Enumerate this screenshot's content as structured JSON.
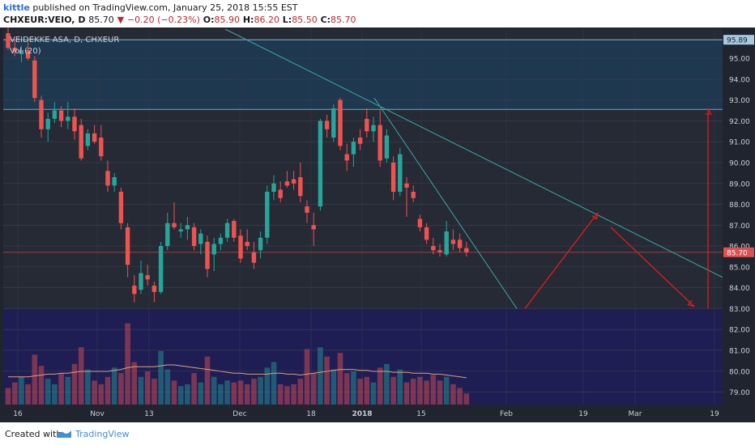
{
  "header": {
    "user": "kittle",
    "published": "published on TradingView.com, January 25, 2018 15:55 EST",
    "symbol": "CHXEUR:VEIO, D",
    "last": "85.70",
    "arrow": "▼",
    "change": "−0.20 (−0.23%)",
    "o_label": "O:",
    "o": "85.90",
    "h_label": "H:",
    "h": "86.20",
    "l_label": "L:",
    "l": "85.50",
    "c_label": "C:",
    "c": "85.70"
  },
  "footer": {
    "created_with": "Created with",
    "brand": "TradingView"
  },
  "colors": {
    "up": "#26a69a",
    "down": "#ef5350",
    "panel_bg": "#252a35",
    "blue_zone": "#1d3a52",
    "volume_bg": "#1e1e55",
    "trend_line": "#3aa9a3",
    "drawing": "#e01b1b",
    "ma": "#e0a070"
  },
  "chart_data": {
    "type": "candlestick",
    "symbol_label": "VEIDEKKE ASA, D, CHXEUR",
    "volume_label": "Vol (20)",
    "y_axis": {
      "ylim": [
        78.4,
        96.4
      ],
      "ticks": [
        "79.00",
        "80.00",
        "81.00",
        "82.00",
        "83.00",
        "84.00",
        "85.00",
        "86.00",
        "87.00",
        "88.00",
        "89.00",
        "90.00",
        "91.00",
        "92.00",
        "93.00",
        "94.00",
        "95.00"
      ],
      "top_label": "95.89",
      "last_label": "85.70"
    },
    "x_axis": {
      "ticks": [
        "16",
        "Nov",
        "13",
        "Dec",
        "18",
        "2018",
        "15",
        "Feb",
        "19",
        "Mar",
        "19"
      ]
    },
    "candles": [
      {
        "o": 96.2,
        "h": 96.6,
        "l": 95.4,
        "c": 95.5
      },
      {
        "o": 95.5,
        "h": 95.9,
        "l": 95.1,
        "c": 95.3
      },
      {
        "o": 95.2,
        "h": 95.6,
        "l": 94.8,
        "c": 95.4
      },
      {
        "o": 95.4,
        "h": 95.8,
        "l": 94.9,
        "c": 95.0
      },
      {
        "o": 94.9,
        "h": 95.1,
        "l": 92.9,
        "c": 93.1
      },
      {
        "o": 93.0,
        "h": 93.2,
        "l": 91.2,
        "c": 91.6
      },
      {
        "o": 91.6,
        "h": 92.4,
        "l": 91.0,
        "c": 92.1
      },
      {
        "o": 92.1,
        "h": 92.9,
        "l": 91.9,
        "c": 92.5
      },
      {
        "o": 92.5,
        "h": 92.7,
        "l": 91.7,
        "c": 92.0
      },
      {
        "o": 92.0,
        "h": 92.9,
        "l": 91.6,
        "c": 92.2
      },
      {
        "o": 92.2,
        "h": 92.6,
        "l": 91.1,
        "c": 91.5
      },
      {
        "o": 91.8,
        "h": 92.1,
        "l": 90.1,
        "c": 90.2
      },
      {
        "o": 90.8,
        "h": 91.6,
        "l": 90.6,
        "c": 91.4
      },
      {
        "o": 91.4,
        "h": 91.8,
        "l": 90.9,
        "c": 91.0
      },
      {
        "o": 91.2,
        "h": 91.8,
        "l": 90.1,
        "c": 90.3
      },
      {
        "o": 89.6,
        "h": 90.1,
        "l": 88.6,
        "c": 88.9
      },
      {
        "o": 88.9,
        "h": 89.5,
        "l": 88.6,
        "c": 89.3
      },
      {
        "o": 88.6,
        "h": 88.8,
        "l": 86.8,
        "c": 87.1
      },
      {
        "o": 86.9,
        "h": 87.1,
        "l": 84.5,
        "c": 85.1
      },
      {
        "o": 84.1,
        "h": 84.6,
        "l": 83.3,
        "c": 83.7
      },
      {
        "o": 83.9,
        "h": 85.3,
        "l": 83.7,
        "c": 84.7
      },
      {
        "o": 84.6,
        "h": 85.1,
        "l": 84.1,
        "c": 84.4
      },
      {
        "o": 84.1,
        "h": 84.3,
        "l": 83.3,
        "c": 83.8
      },
      {
        "o": 83.8,
        "h": 86.2,
        "l": 83.7,
        "c": 86.0
      },
      {
        "o": 86.0,
        "h": 87.6,
        "l": 85.8,
        "c": 87.1
      },
      {
        "o": 87.1,
        "h": 88.1,
        "l": 86.8,
        "c": 86.9
      },
      {
        "o": 86.7,
        "h": 87.1,
        "l": 86.4,
        "c": 86.8
      },
      {
        "o": 86.8,
        "h": 87.4,
        "l": 86.3,
        "c": 87.0
      },
      {
        "o": 86.9,
        "h": 87.1,
        "l": 85.8,
        "c": 86.0
      },
      {
        "o": 86.1,
        "h": 86.8,
        "l": 85.6,
        "c": 86.6
      },
      {
        "o": 86.2,
        "h": 86.5,
        "l": 84.5,
        "c": 84.9
      },
      {
        "o": 85.6,
        "h": 86.4,
        "l": 84.8,
        "c": 86.1
      },
      {
        "o": 86.1,
        "h": 86.6,
        "l": 85.8,
        "c": 86.4
      },
      {
        "o": 86.4,
        "h": 87.3,
        "l": 86.2,
        "c": 87.1
      },
      {
        "o": 87.2,
        "h": 87.3,
        "l": 86.2,
        "c": 86.4
      },
      {
        "o": 86.5,
        "h": 86.8,
        "l": 85.2,
        "c": 85.4
      },
      {
        "o": 86.2,
        "h": 86.8,
        "l": 85.8,
        "c": 86.0
      },
      {
        "o": 85.7,
        "h": 86.2,
        "l": 84.9,
        "c": 85.2
      },
      {
        "o": 85.8,
        "h": 86.7,
        "l": 85.4,
        "c": 86.4
      },
      {
        "o": 86.4,
        "h": 88.9,
        "l": 86.1,
        "c": 88.6
      },
      {
        "o": 88.6,
        "h": 89.4,
        "l": 88.2,
        "c": 89.0
      },
      {
        "o": 88.7,
        "h": 89.1,
        "l": 88.1,
        "c": 88.3
      },
      {
        "o": 89.1,
        "h": 89.6,
        "l": 88.8,
        "c": 88.9
      },
      {
        "o": 89.2,
        "h": 89.6,
        "l": 88.7,
        "c": 89.0
      },
      {
        "o": 89.3,
        "h": 90.0,
        "l": 88.1,
        "c": 88.4
      },
      {
        "o": 87.9,
        "h": 88.2,
        "l": 87.1,
        "c": 87.6
      },
      {
        "o": 87.0,
        "h": 87.6,
        "l": 86.0,
        "c": 86.8
      },
      {
        "o": 87.9,
        "h": 92.1,
        "l": 87.7,
        "c": 92.0
      },
      {
        "o": 92.0,
        "h": 92.3,
        "l": 91.2,
        "c": 91.6
      },
      {
        "o": 91.2,
        "h": 92.8,
        "l": 91.0,
        "c": 92.6
      },
      {
        "o": 93.0,
        "h": 93.1,
        "l": 90.6,
        "c": 90.8
      },
      {
        "o": 90.4,
        "h": 90.9,
        "l": 89.6,
        "c": 90.1
      },
      {
        "o": 90.4,
        "h": 91.2,
        "l": 89.8,
        "c": 91.0
      },
      {
        "o": 91.2,
        "h": 91.6,
        "l": 90.6,
        "c": 90.9
      },
      {
        "o": 92.1,
        "h": 92.6,
        "l": 91.2,
        "c": 91.5
      },
      {
        "o": 91.5,
        "h": 92.2,
        "l": 91.0,
        "c": 91.8
      },
      {
        "o": 91.8,
        "h": 92.5,
        "l": 89.8,
        "c": 90.1
      },
      {
        "o": 90.2,
        "h": 91.6,
        "l": 90.0,
        "c": 91.3
      },
      {
        "o": 90.0,
        "h": 90.3,
        "l": 88.2,
        "c": 88.6
      },
      {
        "o": 88.6,
        "h": 90.7,
        "l": 88.4,
        "c": 90.4
      },
      {
        "o": 89.0,
        "h": 89.3,
        "l": 87.4,
        "c": 88.8
      },
      {
        "o": 88.6,
        "h": 88.9,
        "l": 88.1,
        "c": 88.3
      },
      {
        "o": 87.3,
        "h": 87.5,
        "l": 86.7,
        "c": 86.9
      },
      {
        "o": 86.9,
        "h": 87.1,
        "l": 86.1,
        "c": 86.3
      },
      {
        "o": 86.0,
        "h": 86.4,
        "l": 85.6,
        "c": 85.8
      },
      {
        "o": 85.8,
        "h": 86.1,
        "l": 85.5,
        "c": 85.7
      },
      {
        "o": 85.6,
        "h": 87.2,
        "l": 85.5,
        "c": 86.7
      },
      {
        "o": 86.3,
        "h": 86.8,
        "l": 85.8,
        "c": 86.1
      },
      {
        "o": 86.3,
        "h": 86.6,
        "l": 85.7,
        "c": 85.9
      },
      {
        "o": 85.9,
        "h": 86.2,
        "l": 85.5,
        "c": 85.7
      }
    ],
    "volume": {
      "scale_max": 100,
      "bars": [
        18,
        24,
        30,
        22,
        54,
        42,
        28,
        22,
        34,
        30,
        44,
        62,
        38,
        26,
        22,
        30,
        40,
        34,
        88,
        46,
        30,
        36,
        28,
        58,
        38,
        26,
        20,
        22,
        34,
        24,
        52,
        30,
        22,
        26,
        24,
        26,
        22,
        28,
        30,
        40,
        46,
        22,
        20,
        22,
        28,
        60,
        34,
        62,
        52,
        38,
        56,
        34,
        36,
        28,
        30,
        24,
        40,
        44,
        30,
        38,
        24,
        28,
        30,
        26,
        32,
        26,
        30,
        22,
        18,
        12
      ],
      "ma": [
        30,
        30,
        30,
        30,
        31,
        32,
        33,
        33,
        34,
        34,
        35,
        36,
        36,
        36,
        36,
        36,
        37,
        38,
        40,
        41,
        41,
        41,
        41,
        42,
        43,
        43,
        42,
        41,
        40,
        39,
        38,
        37,
        36,
        35,
        34,
        34,
        33,
        33,
        33,
        33,
        34,
        34,
        33,
        33,
        32,
        33,
        34,
        35,
        36,
        37,
        38,
        38,
        38,
        37,
        37,
        36,
        36,
        36,
        35,
        35,
        35,
        34,
        34,
        34,
        33,
        33,
        32,
        31,
        30,
        29
      ]
    },
    "annotations": {
      "horizontal_levels": [
        95.89,
        92.55,
        85.7
      ],
      "blue_zone": [
        92.55,
        95.89
      ],
      "volume_pane_top": 82.98
    },
    "grid": true
  }
}
